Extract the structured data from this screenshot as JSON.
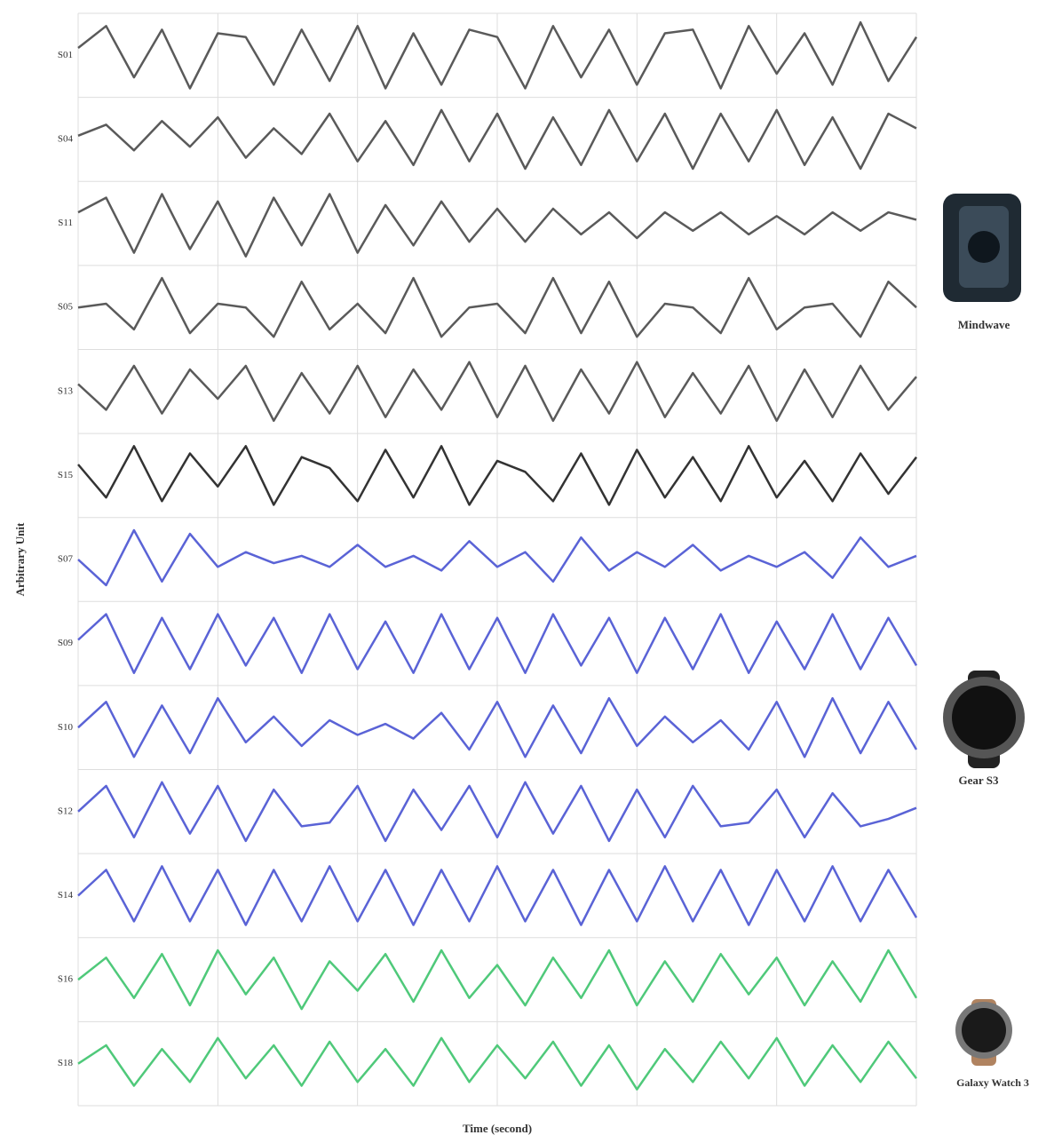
{
  "chart_data": {
    "type": "line",
    "ylabel": "Arbitrary Unit",
    "xlabel": "Time (second)",
    "annotations": [
      "Mindwave",
      "Gear S3",
      "Galaxy Watch 3"
    ],
    "x": [
      0,
      1,
      2,
      3,
      4,
      5,
      6,
      7,
      8,
      9,
      10,
      11,
      12,
      13,
      14,
      15,
      16,
      17,
      18,
      19,
      20,
      21,
      22,
      23,
      24,
      25,
      26,
      27,
      28,
      29,
      30
    ],
    "xlim": [
      0,
      30
    ],
    "ylim": [
      -1,
      1
    ],
    "grid": true,
    "series": [
      {
        "name": "S01",
        "color": "#5a5a5a",
        "values": [
          0.2,
          0.8,
          -0.6,
          0.7,
          -0.9,
          0.6,
          0.5,
          -0.8,
          0.7,
          -0.7,
          0.8,
          -0.9,
          0.6,
          -0.8,
          0.7,
          0.5,
          -0.9,
          0.8,
          -0.6,
          0.7,
          -0.8,
          0.6,
          0.7,
          -0.9,
          0.8,
          -0.5,
          0.6,
          -0.8,
          0.9,
          -0.7,
          0.5
        ]
      },
      {
        "name": "S04",
        "color": "#5a5a5a",
        "values": [
          0.1,
          0.4,
          -0.3,
          0.5,
          -0.2,
          0.6,
          -0.5,
          0.3,
          -0.4,
          0.7,
          -0.6,
          0.5,
          -0.7,
          0.8,
          -0.6,
          0.7,
          -0.8,
          0.6,
          -0.7,
          0.8,
          -0.6,
          0.7,
          -0.8,
          0.7,
          -0.6,
          0.8,
          -0.7,
          0.6,
          -0.8,
          0.7,
          0.3
        ]
      },
      {
        "name": "S11",
        "color": "#5a5a5a",
        "values": [
          0.3,
          0.7,
          -0.8,
          0.8,
          -0.7,
          0.6,
          -0.9,
          0.7,
          -0.6,
          0.8,
          -0.8,
          0.5,
          -0.6,
          0.6,
          -0.5,
          0.4,
          -0.5,
          0.4,
          -0.3,
          0.3,
          -0.4,
          0.3,
          -0.2,
          0.3,
          -0.3,
          0.2,
          -0.3,
          0.3,
          -0.2,
          0.3,
          0.1
        ]
      },
      {
        "name": "S05",
        "color": "#5a5a5a",
        "values": [
          0.0,
          0.1,
          -0.6,
          0.8,
          -0.7,
          0.1,
          0.0,
          -0.8,
          0.7,
          -0.6,
          0.1,
          -0.7,
          0.8,
          -0.8,
          0.0,
          0.1,
          -0.7,
          0.8,
          -0.7,
          0.7,
          -0.8,
          0.1,
          0.0,
          -0.7,
          0.8,
          -0.6,
          0.0,
          0.1,
          -0.8,
          0.7,
          0.0
        ]
      },
      {
        "name": "S13",
        "color": "#5a5a5a",
        "values": [
          0.2,
          -0.5,
          0.7,
          -0.6,
          0.6,
          -0.2,
          0.7,
          -0.8,
          0.5,
          -0.6,
          0.7,
          -0.7,
          0.6,
          -0.5,
          0.8,
          -0.7,
          0.7,
          -0.8,
          0.6,
          -0.6,
          0.8,
          -0.7,
          0.5,
          -0.6,
          0.7,
          -0.8,
          0.6,
          -0.7,
          0.7,
          -0.5,
          0.4
        ]
      },
      {
        "name": "S15",
        "color": "#333333",
        "values": [
          0.3,
          -0.6,
          0.8,
          -0.7,
          0.6,
          -0.3,
          0.8,
          -0.8,
          0.5,
          0.2,
          -0.7,
          0.7,
          -0.6,
          0.8,
          -0.8,
          0.4,
          0.1,
          -0.7,
          0.6,
          -0.8,
          0.7,
          -0.6,
          0.5,
          -0.7,
          0.8,
          -0.6,
          0.4,
          -0.7,
          0.6,
          -0.5,
          0.5
        ]
      },
      {
        "name": "S07",
        "color": "#5a63d6",
        "values": [
          0.0,
          -0.7,
          0.8,
          -0.6,
          0.7,
          -0.2,
          0.2,
          -0.1,
          0.1,
          -0.2,
          0.4,
          -0.2,
          0.1,
          -0.3,
          0.5,
          -0.2,
          0.2,
          -0.6,
          0.6,
          -0.3,
          0.2,
          -0.2,
          0.4,
          -0.3,
          0.1,
          -0.2,
          0.2,
          -0.5,
          0.6,
          -0.2,
          0.1
        ]
      },
      {
        "name": "S09",
        "color": "#5a63d6",
        "values": [
          0.1,
          0.8,
          -0.8,
          0.7,
          -0.7,
          0.8,
          -0.6,
          0.7,
          -0.8,
          0.8,
          -0.7,
          0.6,
          -0.8,
          0.8,
          -0.7,
          0.7,
          -0.8,
          0.8,
          -0.6,
          0.7,
          -0.8,
          0.7,
          -0.7,
          0.8,
          -0.8,
          0.6,
          -0.7,
          0.8,
          -0.7,
          0.7,
          -0.6
        ]
      },
      {
        "name": "S10",
        "color": "#5a63d6",
        "values": [
          0.0,
          0.7,
          -0.8,
          0.6,
          -0.7,
          0.8,
          -0.4,
          0.3,
          -0.5,
          0.2,
          -0.2,
          0.1,
          -0.3,
          0.4,
          -0.6,
          0.7,
          -0.8,
          0.6,
          -0.7,
          0.8,
          -0.5,
          0.3,
          -0.4,
          0.2,
          -0.6,
          0.7,
          -0.8,
          0.8,
          -0.7,
          0.7,
          -0.6
        ]
      },
      {
        "name": "S12",
        "color": "#5a63d6",
        "values": [
          0.0,
          0.7,
          -0.7,
          0.8,
          -0.6,
          0.7,
          -0.8,
          0.6,
          -0.4,
          -0.3,
          0.7,
          -0.8,
          0.6,
          -0.5,
          0.7,
          -0.7,
          0.8,
          -0.6,
          0.7,
          -0.8,
          0.6,
          -0.7,
          0.7,
          -0.4,
          -0.3,
          0.6,
          -0.7,
          0.5,
          -0.4,
          -0.2,
          0.1
        ]
      },
      {
        "name": "S14",
        "color": "#5a63d6",
        "values": [
          0.0,
          0.7,
          -0.7,
          0.8,
          -0.7,
          0.7,
          -0.8,
          0.7,
          -0.7,
          0.8,
          -0.7,
          0.7,
          -0.8,
          0.7,
          -0.7,
          0.8,
          -0.7,
          0.7,
          -0.8,
          0.7,
          -0.7,
          0.8,
          -0.7,
          0.7,
          -0.8,
          0.7,
          -0.7,
          0.8,
          -0.7,
          0.7,
          -0.6
        ]
      },
      {
        "name": "S16",
        "color": "#4fc97a",
        "values": [
          0.0,
          0.6,
          -0.5,
          0.7,
          -0.7,
          0.8,
          -0.4,
          0.6,
          -0.8,
          0.5,
          -0.3,
          0.7,
          -0.6,
          0.8,
          -0.5,
          0.4,
          -0.7,
          0.6,
          -0.5,
          0.8,
          -0.7,
          0.5,
          -0.6,
          0.7,
          -0.4,
          0.6,
          -0.7,
          0.5,
          -0.6,
          0.8,
          -0.5
        ]
      },
      {
        "name": "S18",
        "color": "#4fc97a",
        "values": [
          0.0,
          0.5,
          -0.6,
          0.4,
          -0.5,
          0.7,
          -0.4,
          0.5,
          -0.6,
          0.6,
          -0.5,
          0.4,
          -0.6,
          0.7,
          -0.5,
          0.5,
          -0.4,
          0.6,
          -0.6,
          0.5,
          -0.7,
          0.4,
          -0.5,
          0.6,
          -0.4,
          0.7,
          -0.6,
          0.5,
          -0.5,
          0.6,
          -0.4
        ]
      }
    ]
  }
}
